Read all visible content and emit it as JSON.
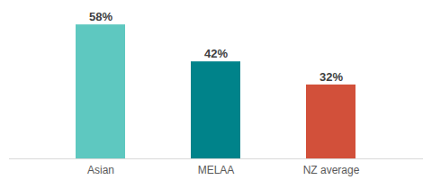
{
  "chart_data": {
    "type": "bar",
    "categories": [
      "Asian",
      "MELAA",
      "NZ average"
    ],
    "values": [
      58,
      42,
      32
    ],
    "value_labels": [
      "58%",
      "42%",
      "32%"
    ],
    "colors": [
      "#5ec8c0",
      "#00838a",
      "#d2503a"
    ],
    "ylim": [
      0,
      60
    ],
    "data_labels": true,
    "tick_labels": "x",
    "grid": false
  }
}
